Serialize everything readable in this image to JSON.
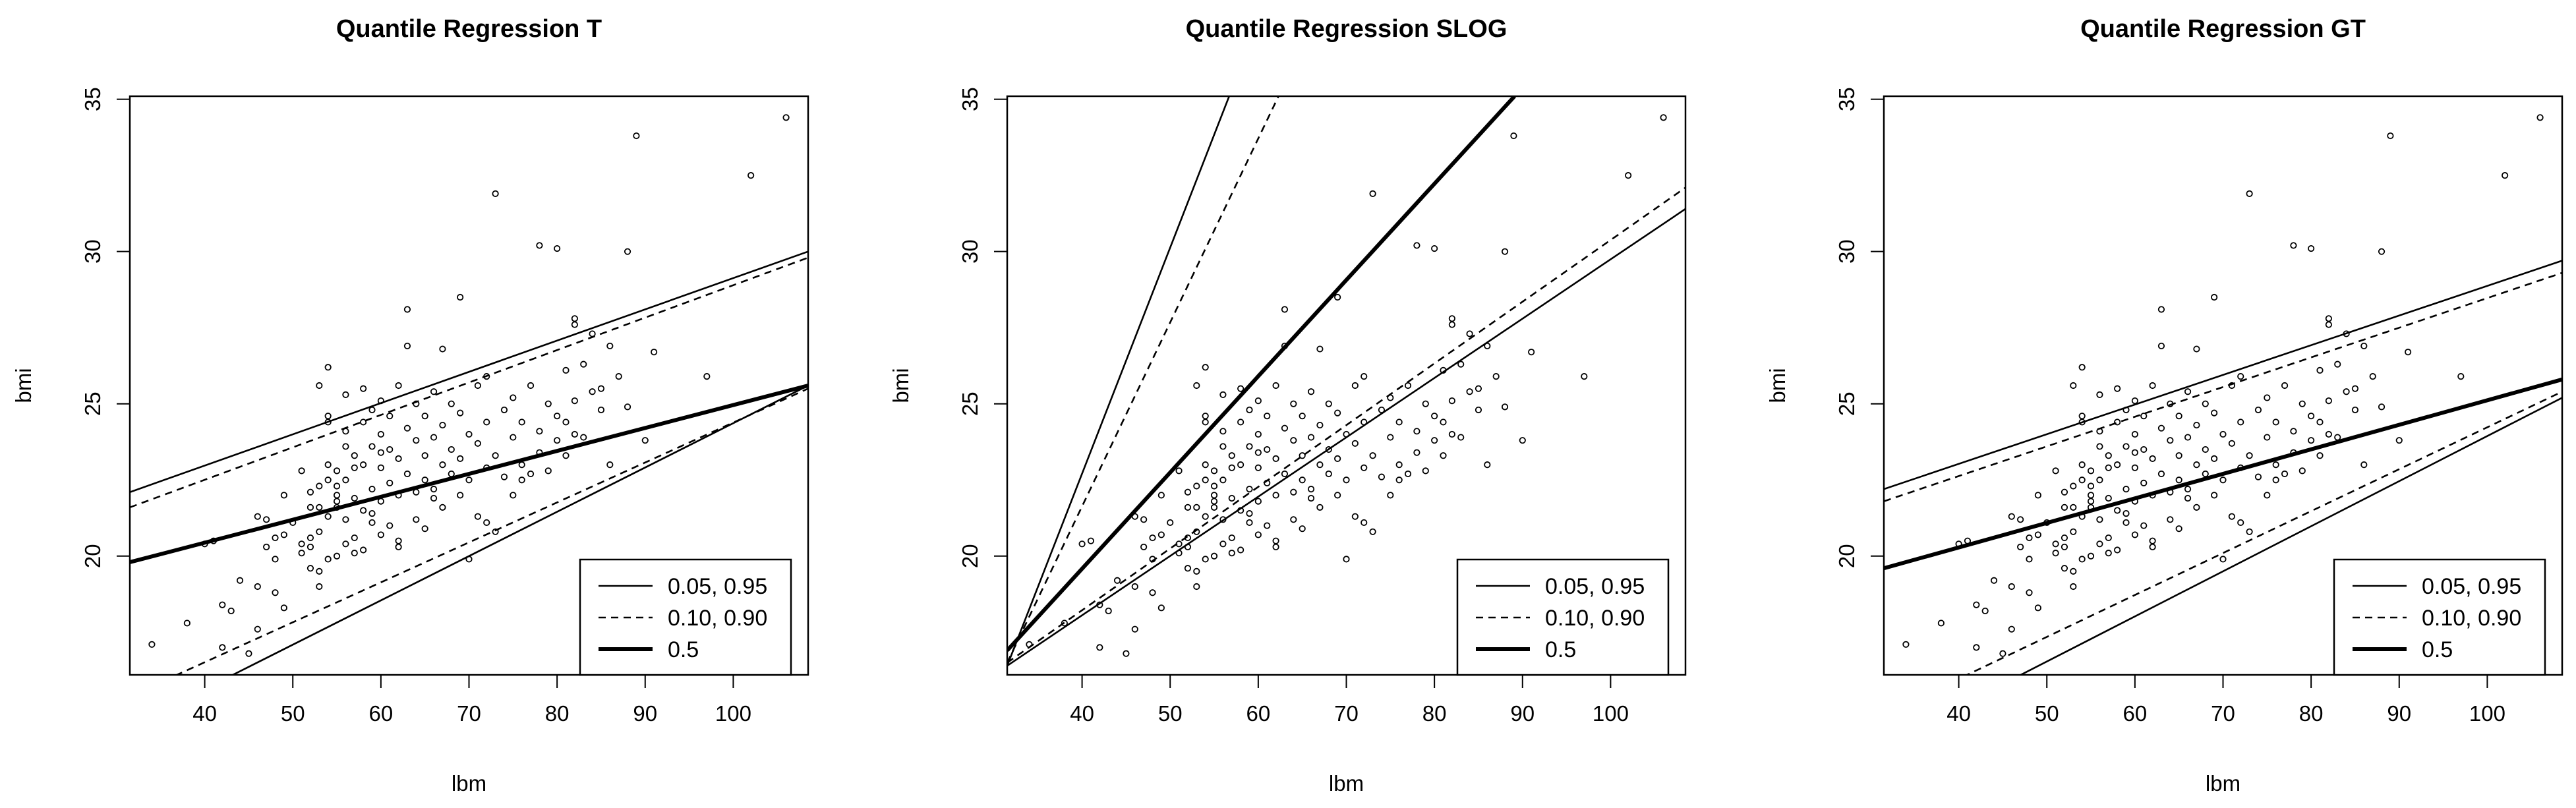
{
  "figure_id": "quantile-regression-comparison",
  "chart_data": [
    {
      "type": "scatter",
      "title": "Quantile Regression T",
      "xlabel": "lbm",
      "ylabel": "bmi",
      "xlim": [
        31.5,
        108.5
      ],
      "ylim": [
        16.1,
        35.1
      ],
      "xticks": [
        40,
        50,
        60,
        70,
        80,
        90,
        100
      ],
      "yticks": [
        20,
        25,
        30,
        35
      ],
      "legend": {
        "position": "bottom-right",
        "entries": [
          {
            "label": "0.05, 0.95",
            "style": "solid-thin"
          },
          {
            "label": "0.10, 0.90",
            "style": "dashed"
          },
          {
            "label": "0.5",
            "style": "solid-thick"
          }
        ]
      },
      "lines": [
        {
          "tau": "0.05",
          "style": "solid-thin",
          "x1": 31.5,
          "y1": 14.4,
          "x2": 108.5,
          "y2": 25.6
        },
        {
          "tau": "0.95",
          "style": "solid-thin",
          "x1": 31.5,
          "y1": 22.1,
          "x2": 108.5,
          "y2": 30.0
        },
        {
          "tau": "0.10",
          "style": "dashed",
          "x1": 31.5,
          "y1": 15.4,
          "x2": 108.5,
          "y2": 25.5
        },
        {
          "tau": "0.90",
          "style": "dashed",
          "x1": 31.5,
          "y1": 21.6,
          "x2": 108.5,
          "y2": 29.8
        },
        {
          "tau": "0.5",
          "style": "solid-thick",
          "x1": 31.5,
          "y1": 19.8,
          "x2": 108.5,
          "y2": 25.6
        }
      ]
    },
    {
      "type": "scatter",
      "title": "Quantile Regression SLOG",
      "xlabel": "lbm",
      "ylabel": "bmi",
      "xlim": [
        31.5,
        108.5
      ],
      "ylim": [
        16.1,
        35.1
      ],
      "xticks": [
        40,
        50,
        60,
        70,
        80,
        90,
        100
      ],
      "yticks": [
        20,
        25,
        30,
        35
      ],
      "legend": {
        "position": "bottom-right",
        "entries": [
          {
            "label": "0.05, 0.95",
            "style": "solid-thin"
          },
          {
            "label": "0.10, 0.90",
            "style": "dashed"
          },
          {
            "label": "0.5",
            "style": "solid-thick"
          }
        ]
      },
      "lines": [
        {
          "tau": "0.05",
          "style": "solid-thin",
          "x1": 31.5,
          "y1": 16.4,
          "x2": 108.5,
          "y2": 31.4
        },
        {
          "tau": "0.95",
          "style": "solid-thin",
          "x1": 31.5,
          "y1": 16.4,
          "x2": 56.7,
          "y2": 35.1
        },
        {
          "tau": "0.10",
          "style": "dashed",
          "x1": 31.5,
          "y1": 16.5,
          "x2": 108.5,
          "y2": 32.1
        },
        {
          "tau": "0.90",
          "style": "dashed",
          "x1": 31.5,
          "y1": 16.5,
          "x2": 62.3,
          "y2": 35.1
        },
        {
          "tau": "0.5",
          "style": "solid-thick",
          "x1": 31.5,
          "y1": 16.9,
          "x2": 89.1,
          "y2": 35.1
        }
      ]
    },
    {
      "type": "scatter",
      "title": "Quantile Regression GT",
      "xlabel": "lbm",
      "ylabel": "bmi",
      "xlim": [
        31.5,
        108.5
      ],
      "ylim": [
        16.1,
        35.1
      ],
      "xticks": [
        40,
        50,
        60,
        70,
        80,
        90,
        100
      ],
      "yticks": [
        20,
        25,
        30,
        35
      ],
      "legend": {
        "position": "bottom-right",
        "entries": [
          {
            "label": "0.05, 0.95",
            "style": "solid-thin"
          },
          {
            "label": "0.10, 0.90",
            "style": "dashed"
          },
          {
            "label": "0.5",
            "style": "solid-thick"
          }
        ]
      },
      "lines": [
        {
          "tau": "0.05",
          "style": "solid-thin",
          "x1": 31.5,
          "y1": 13.8,
          "x2": 108.5,
          "y2": 25.2
        },
        {
          "tau": "0.95",
          "style": "solid-thin",
          "x1": 31.5,
          "y1": 22.2,
          "x2": 108.5,
          "y2": 29.7
        },
        {
          "tau": "0.10",
          "style": "dashed",
          "x1": 31.5,
          "y1": 14.8,
          "x2": 108.5,
          "y2": 25.4
        },
        {
          "tau": "0.90",
          "style": "dashed",
          "x1": 31.5,
          "y1": 21.8,
          "x2": 108.5,
          "y2": 29.3
        },
        {
          "tau": "0.5",
          "style": "solid-thick",
          "x1": 31.5,
          "y1": 19.6,
          "x2": 108.5,
          "y2": 25.8
        }
      ]
    }
  ],
  "points": [
    [
      34,
      17.1
    ],
    [
      38,
      17.8
    ],
    [
      40,
      20.4
    ],
    [
      41,
      20.5
    ],
    [
      42,
      18.4
    ],
    [
      42,
      17.0
    ],
    [
      43,
      18.2
    ],
    [
      44,
      19.2
    ],
    [
      45,
      16.8
    ],
    [
      46,
      19.0
    ],
    [
      46,
      21.3
    ],
    [
      46,
      17.6
    ],
    [
      47,
      21.2
    ],
    [
      47,
      20.3
    ],
    [
      48,
      19.9
    ],
    [
      48,
      18.8
    ],
    [
      48,
      20.6
    ],
    [
      49,
      22.0
    ],
    [
      49,
      18.3
    ],
    [
      49,
      20.7
    ],
    [
      50,
      21.1
    ],
    [
      51,
      20.1
    ],
    [
      51,
      20.4
    ],
    [
      51,
      22.8
    ],
    [
      52,
      20.6
    ],
    [
      52,
      22.1
    ],
    [
      52,
      19.6
    ],
    [
      52,
      21.6
    ],
    [
      52,
      20.3
    ],
    [
      53,
      19.0
    ],
    [
      53,
      21.6
    ],
    [
      53,
      22.3
    ],
    [
      53,
      19.5
    ],
    [
      53,
      20.8
    ],
    [
      53,
      25.6
    ],
    [
      54,
      24.6
    ],
    [
      54,
      22.5
    ],
    [
      54,
      23.0
    ],
    [
      54,
      19.9
    ],
    [
      54,
      26.2
    ],
    [
      54,
      21.3
    ],
    [
      54,
      24.4
    ],
    [
      55,
      21.6
    ],
    [
      55,
      22.8
    ],
    [
      55,
      21.8
    ],
    [
      55,
      20.0
    ],
    [
      55,
      22.3
    ],
    [
      55,
      22.0
    ],
    [
      56,
      22.5
    ],
    [
      56,
      23.6
    ],
    [
      56,
      21.2
    ],
    [
      56,
      24.1
    ],
    [
      56,
      20.4
    ],
    [
      56,
      25.3
    ],
    [
      57,
      23.3
    ],
    [
      57,
      21.9
    ],
    [
      57,
      22.9
    ],
    [
      57,
      20.1
    ],
    [
      58,
      21.5
    ],
    [
      58,
      24.4
    ],
    [
      58,
      23.0
    ],
    [
      58,
      20.2
    ],
    [
      58,
      25.5
    ],
    [
      59,
      21.1
    ],
    [
      59,
      23.6
    ],
    [
      59,
      22.2
    ],
    [
      59,
      24.8
    ],
    [
      60,
      20.7
    ],
    [
      60,
      22.9
    ],
    [
      60,
      24.0
    ],
    [
      60,
      25.1
    ],
    [
      60,
      21.8
    ],
    [
      61,
      23.5
    ],
    [
      61,
      22.4
    ],
    [
      61,
      21.0
    ],
    [
      61,
      24.6
    ],
    [
      62,
      23.2
    ],
    [
      62,
      25.6
    ],
    [
      62,
      22.0
    ],
    [
      62,
      20.5
    ],
    [
      63,
      24.2
    ],
    [
      63,
      22.7
    ],
    [
      63,
      26.9
    ],
    [
      63,
      28.1
    ],
    [
      64,
      23.8
    ],
    [
      64,
      22.1
    ],
    [
      64,
      25.0
    ],
    [
      64,
      21.2
    ],
    [
      65,
      23.3
    ],
    [
      65,
      24.6
    ],
    [
      65,
      22.5
    ],
    [
      65,
      20.9
    ],
    [
      66,
      23.9
    ],
    [
      66,
      22.2
    ],
    [
      66,
      25.4
    ],
    [
      67,
      24.3
    ],
    [
      67,
      23.0
    ],
    [
      67,
      26.8
    ],
    [
      67,
      21.6
    ],
    [
      68,
      23.5
    ],
    [
      68,
      25.0
    ],
    [
      68,
      22.7
    ],
    [
      69,
      24.7
    ],
    [
      69,
      23.2
    ],
    [
      69,
      28.5
    ],
    [
      70,
      24.0
    ],
    [
      70,
      22.5
    ],
    [
      70,
      19.9
    ],
    [
      71,
      23.7
    ],
    [
      71,
      25.6
    ],
    [
      71,
      21.3
    ],
    [
      72,
      24.4
    ],
    [
      72,
      22.9
    ],
    [
      72,
      25.9
    ],
    [
      73,
      23.3
    ],
    [
      73,
      31.9
    ],
    [
      73,
      20.8
    ],
    [
      74,
      24.8
    ],
    [
      74,
      22.6
    ],
    [
      75,
      23.9
    ],
    [
      75,
      25.2
    ],
    [
      75,
      22.0
    ],
    [
      76,
      24.4
    ],
    [
      76,
      23.0
    ],
    [
      77,
      25.6
    ],
    [
      77,
      22.7
    ],
    [
      78,
      24.1
    ],
    [
      78,
      23.4
    ],
    [
      78,
      30.2
    ],
    [
      79,
      25.0
    ],
    [
      79,
      22.8
    ],
    [
      80,
      24.6
    ],
    [
      80,
      23.8
    ],
    [
      80,
      30.1
    ],
    [
      81,
      26.1
    ],
    [
      81,
      23.3
    ],
    [
      82,
      27.6
    ],
    [
      82,
      25.1
    ],
    [
      82,
      24.0
    ],
    [
      82,
      27.8
    ],
    [
      83,
      26.3
    ],
    [
      83,
      23.9
    ],
    [
      84,
      25.4
    ],
    [
      84,
      27.3
    ],
    [
      85,
      24.8
    ],
    [
      86,
      26.9
    ],
    [
      86,
      23.0
    ],
    [
      87,
      25.9
    ],
    [
      88,
      24.9
    ],
    [
      88,
      30.0
    ],
    [
      89,
      33.8
    ],
    [
      90,
      23.8
    ],
    [
      91,
      26.7
    ],
    [
      97,
      25.9
    ],
    [
      102,
      32.5
    ],
    [
      106,
      34.4
    ],
    [
      59,
      21.4
    ],
    [
      62,
      20.3
    ],
    [
      66,
      21.9
    ],
    [
      69,
      22.0
    ],
    [
      72,
      21.1
    ],
    [
      76,
      22.5
    ],
    [
      81,
      24.4
    ],
    [
      85,
      25.5
    ],
    [
      57,
      20.6
    ],
    [
      60,
      23.4
    ]
  ],
  "labels": {
    "legend_fill": "#ffffff",
    "line_color": "#000000"
  }
}
